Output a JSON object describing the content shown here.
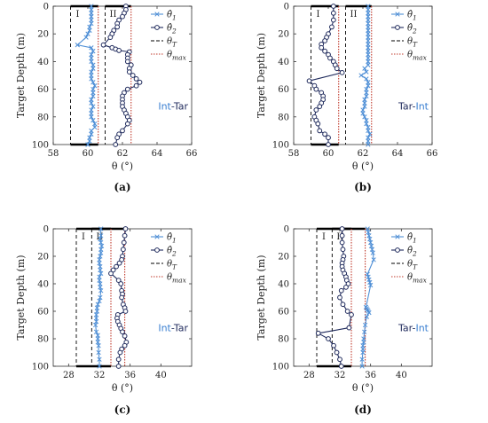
{
  "colors": {
    "theta1": "#4f8fd6",
    "theta2": "#1f2a5c",
    "thetaT": "#000000",
    "thetaMax": "#c0392b",
    "int": "#3a7fd1",
    "tar": "#1f2a5c"
  },
  "legend": {
    "items": [
      {
        "key": "theta1",
        "base": "θ̂",
        "sub": "1",
        "style": "theta1"
      },
      {
        "key": "theta2",
        "base": "θ̂",
        "sub": "2",
        "style": "theta2"
      },
      {
        "key": "thetaT",
        "base": "θ",
        "sub": "T",
        "style": "thetaT"
      },
      {
        "key": "thetaMax",
        "base": "θ",
        "sub": "max",
        "style": "thetaMax"
      }
    ]
  },
  "chart_data": [
    {
      "panel": "(a)",
      "type": "line",
      "xlabel": "θ (°)",
      "ylabel": "Target Depth (m)",
      "xlim": [
        58,
        66
      ],
      "xticks": [
        58,
        60,
        62,
        64,
        66
      ],
      "ylim": [
        0,
        100
      ],
      "yticks": [
        0,
        20,
        40,
        60,
        80,
        100
      ],
      "region_labels": [
        "I",
        "II"
      ],
      "thetaT": [
        59,
        61
      ],
      "thetaMax": [
        60.6,
        62.5
      ],
      "annotation": [
        {
          "text": "Int",
          "color": "int"
        },
        {
          "text": "-",
          "color": "tar"
        },
        {
          "text": "Tar",
          "color": "tar"
        }
      ],
      "series": [
        {
          "name": "θ̂1",
          "x": [
            60.2,
            60.2,
            60.2,
            60.2,
            60.2,
            60.2,
            60.1,
            60.1,
            60.0,
            59.9,
            59.4,
            60.2,
            60.3,
            60.2,
            60.2,
            60.2,
            60.3,
            60.3,
            60.2,
            60.2,
            60.2,
            60.3,
            60.4,
            60.3,
            60.3,
            60.3,
            60.2,
            60.2,
            60.3,
            60.2,
            60.2,
            60.2,
            60.3,
            60.4,
            60.4,
            60.2,
            60.2,
            60.1,
            60.1,
            60.0,
            60.0
          ],
          "y": [
            0,
            2.5,
            5,
            7.5,
            10,
            12.5,
            15,
            17.5,
            20,
            22.5,
            28,
            30,
            32.5,
            35,
            37.5,
            40,
            42.5,
            45,
            47.5,
            50,
            52.5,
            55,
            57.5,
            60,
            62.5,
            65,
            67.5,
            70,
            72.5,
            75,
            77.5,
            80,
            82.5,
            85,
            87.5,
            90,
            92.5,
            95,
            97.5,
            100,
            100
          ]
        },
        {
          "name": "θ̂2",
          "x": [
            62.2,
            62.2,
            62.1,
            62.0,
            61.8,
            61.7,
            61.7,
            61.5,
            61.4,
            61.3,
            60.9,
            61.4,
            61.6,
            61.8,
            62.4,
            62.3,
            62.3,
            62.3,
            62.5,
            62.4,
            62.4,
            62.6,
            62.8,
            63.0,
            62.8,
            62.3,
            62.1,
            62.0,
            62.0,
            62.0,
            62.0,
            62.1,
            62.2,
            62.3,
            62.4,
            62.3,
            62.0,
            61.8,
            61.7,
            61.6
          ],
          "y": [
            0,
            2.5,
            5,
            7.5,
            10,
            12.5,
            15,
            17.5,
            20,
            22.5,
            28,
            30,
            31,
            32,
            33,
            35,
            37.5,
            40,
            42.5,
            45,
            47.5,
            50,
            52.5,
            55,
            57.5,
            60,
            62.5,
            65,
            67.5,
            70,
            72.5,
            75,
            77.5,
            80,
            82.5,
            85,
            90,
            92.5,
            95,
            100
          ]
        }
      ]
    },
    {
      "panel": "(b)",
      "type": "line",
      "xlabel": "θ (°)",
      "ylabel": "",
      "xlim": [
        58,
        66
      ],
      "xticks": [
        58,
        60,
        62,
        64,
        66
      ],
      "ylim": [
        0,
        100
      ],
      "yticks": [
        0,
        20,
        40,
        60,
        80,
        100
      ],
      "region_labels": [
        "I",
        "II"
      ],
      "thetaT": [
        59,
        61
      ],
      "thetaMax": [
        60.6,
        62.5
      ],
      "annotation": [
        {
          "text": "Tar",
          "color": "tar"
        },
        {
          "text": "-",
          "color": "tar"
        },
        {
          "text": "Int",
          "color": "int"
        }
      ],
      "series": [
        {
          "name": "θ̂1",
          "x": [
            62.3,
            62.3,
            62.3,
            62.3,
            62.3,
            62.3,
            62.3,
            62.3,
            62.3,
            62.3,
            62.3,
            62.3,
            62.3,
            62.3,
            62.3,
            62.3,
            62.3,
            62.3,
            62.1,
            62.2,
            61.9,
            62.2,
            62.3,
            62.3,
            62.2,
            62.2,
            62.2,
            62.1,
            62.1,
            62.1,
            62.0,
            62.0,
            62.1,
            62.2,
            62.2,
            62.3,
            62.3,
            62.4,
            62.3,
            62.3,
            62.3
          ],
          "y": [
            0,
            2.5,
            5,
            7.5,
            10,
            12.5,
            15,
            17.5,
            20,
            22.5,
            25,
            27.5,
            30,
            32.5,
            35,
            37.5,
            40,
            42.5,
            45,
            47.5,
            50,
            52.5,
            55,
            57.5,
            60,
            62.5,
            65,
            67.5,
            70,
            72.5,
            75,
            77.5,
            80,
            82.5,
            85,
            87.5,
            90,
            92.5,
            95,
            97.5,
            100
          ]
        },
        {
          "name": "θ̂2",
          "x": [
            60.3,
            60.3,
            60.3,
            60.2,
            60.0,
            59.9,
            59.8,
            59.6,
            59.6,
            59.8,
            60.0,
            60.1,
            60.3,
            60.4,
            60.5,
            60.8,
            58.9,
            59.2,
            59.3,
            59.6,
            59.7,
            59.7,
            59.6,
            59.5,
            59.3,
            59.2,
            59.3,
            59.4,
            59.5,
            59.8,
            60.0,
            60.0
          ],
          "y": [
            0,
            5,
            10,
            15,
            20,
            22.5,
            25,
            27.5,
            30,
            32.5,
            35,
            37.5,
            40,
            42.5,
            45,
            48,
            54,
            57.5,
            60,
            62.5,
            65,
            67.5,
            70,
            72.5,
            75,
            80,
            82.5,
            85,
            90,
            92.5,
            95,
            100
          ]
        }
      ]
    },
    {
      "panel": "(c)",
      "type": "line",
      "xlabel": "θ (°)",
      "ylabel": "Target Depth (m)",
      "xlim": [
        26,
        44
      ],
      "xticks": [
        28,
        32,
        36,
        40
      ],
      "ylim": [
        0,
        100
      ],
      "yticks": [
        0,
        20,
        40,
        60,
        80,
        100
      ],
      "region_labels": [
        "I",
        "II"
      ],
      "thetaT": [
        29,
        31
      ],
      "thetaMax": [
        33.5,
        35.3
      ],
      "annotation": [
        {
          "text": "Int",
          "color": "int"
        },
        {
          "text": "-",
          "color": "tar"
        },
        {
          "text": "Tar",
          "color": "tar"
        }
      ],
      "series": [
        {
          "name": "θ̂1",
          "x": [
            32.2,
            32.2,
            32.1,
            32.2,
            32.3,
            32.2,
            32.2,
            32.1,
            32.0,
            32.0,
            32.1,
            32.1,
            32.2,
            32.0,
            32.0,
            32.1,
            32.1,
            32.2,
            32.1,
            32.0,
            31.8,
            31.7,
            31.7,
            31.6,
            31.6,
            31.6,
            31.5,
            31.6,
            31.8,
            31.8,
            31.8,
            31.9,
            31.9,
            32.0,
            32.0
          ],
          "y": [
            0,
            5,
            7.5,
            10,
            12.5,
            15,
            17.5,
            20,
            22.5,
            25,
            27.5,
            30,
            32.5,
            35,
            37.5,
            40,
            42.5,
            45,
            50,
            52.5,
            55,
            57.5,
            60,
            62.5,
            65,
            67.5,
            70,
            75,
            77.5,
            80,
            82.5,
            85,
            90,
            95,
            100
          ]
        },
        {
          "name": "θ̂2",
          "x": [
            35.4,
            35.3,
            35.2,
            35.1,
            35.0,
            34.9,
            34.6,
            34.2,
            33.8,
            33.5,
            34.5,
            34.8,
            34.9,
            35.0,
            34.9,
            35.1,
            35.3,
            35.4,
            34.4,
            34.3,
            34.4,
            34.6,
            34.8,
            35.0,
            35.3,
            35.5,
            35.3,
            34.9,
            34.7,
            34.5,
            34.5
          ],
          "y": [
            0,
            5,
            10,
            15,
            20,
            22.5,
            25,
            27.5,
            30,
            32.5,
            37.5,
            40,
            45,
            47.5,
            50,
            55,
            57.5,
            60,
            62.5,
            65,
            67.5,
            70,
            72.5,
            75,
            78,
            82.5,
            85,
            87.5,
            90,
            95,
            100
          ]
        }
      ]
    },
    {
      "panel": "(d)",
      "type": "line",
      "xlabel": "θ (°)",
      "ylabel": "Target Depth (m)",
      "xlim": [
        26,
        44
      ],
      "xticks": [
        28,
        32,
        36,
        40
      ],
      "ylim": [
        0,
        100
      ],
      "yticks": [
        0,
        20,
        40,
        60,
        80,
        100
      ],
      "region_labels": [
        "I",
        "II"
      ],
      "thetaT": [
        29,
        31
      ],
      "thetaMax": [
        33.5,
        35.3
      ],
      "annotation": [
        {
          "text": "Tar",
          "color": "tar"
        },
        {
          "text": "-",
          "color": "tar"
        },
        {
          "text": "Int",
          "color": "int"
        }
      ],
      "series": [
        {
          "name": "θ̂1",
          "x": [
            35.6,
            35.7,
            35.8,
            35.9,
            36.0,
            36.1,
            36.2,
            36.3,
            36.4,
            35.6,
            35.7,
            35.8,
            35.9,
            36.0,
            35.4,
            35.5,
            35.6,
            35.7,
            35.8,
            35.5,
            35.3,
            35.2,
            35.1,
            35.1,
            35.0,
            35.0,
            35.0,
            34.9,
            34.9
          ],
          "y": [
            0,
            2.5,
            5,
            7.5,
            10,
            12.5,
            15,
            17.5,
            22.5,
            33,
            35,
            37,
            39,
            41,
            57,
            58,
            59,
            60,
            61,
            64,
            70,
            75,
            80,
            82.5,
            85,
            87.5,
            90,
            95,
            100
          ]
        },
        {
          "name": "θ̂2",
          "x": [
            32.3,
            32.3,
            32.3,
            32.4,
            32.5,
            32.4,
            32.3,
            32.3,
            32.4,
            32.6,
            32.8,
            32.9,
            33.1,
            32.8,
            32.2,
            32.0,
            32.4,
            33.0,
            33.5,
            33.2,
            29.2,
            30.5,
            31.2,
            31.6,
            32.0,
            32.2
          ],
          "y": [
            0,
            5,
            10,
            15,
            20,
            22.5,
            25,
            27.5,
            30,
            32.5,
            35,
            37.5,
            40,
            42.5,
            45,
            50,
            55,
            60,
            62.5,
            72,
            76,
            80,
            85,
            90,
            95,
            100
          ]
        }
      ]
    }
  ]
}
